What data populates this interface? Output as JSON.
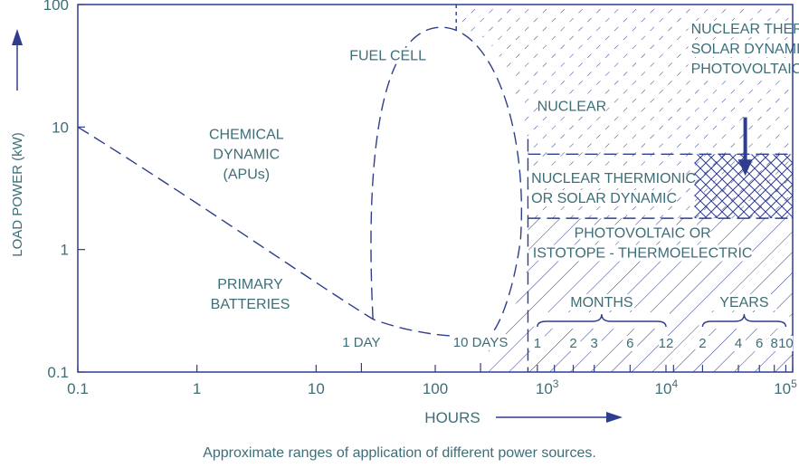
{
  "colors": {
    "axis": "#2f3d8f",
    "text": "#3d6e78",
    "line": "#2f3d8f",
    "arrow": "#2f3d8f"
  },
  "caption": "Approximate ranges of application of different power sources.",
  "chart_data": {
    "type": "area",
    "xlabel": "HOURS",
    "ylabel": "LOAD POWER (kW)",
    "x_scale": "log",
    "y_scale": "log",
    "xlim": [
      0.1,
      100000
    ],
    "ylim": [
      0.1,
      100
    ],
    "x_ticks": [
      {
        "value": 0.1,
        "label": "0.1"
      },
      {
        "value": 1,
        "label": "1"
      },
      {
        "value": 10,
        "label": "10"
      },
      {
        "value": 100,
        "label": "100"
      },
      {
        "value": 1000,
        "label": "10",
        "exp": "3"
      },
      {
        "value": 10000,
        "label": "10",
        "exp": "4"
      },
      {
        "value": 100000,
        "label": "10",
        "exp": "5"
      }
    ],
    "y_ticks": [
      {
        "value": 0.1,
        "label": "0.1"
      },
      {
        "value": 1,
        "label": "1"
      },
      {
        "value": 10,
        "label": "10"
      },
      {
        "value": 100,
        "label": "100"
      }
    ],
    "time_markers": [
      {
        "x": 24,
        "label": "1 DAY"
      },
      {
        "x": 240,
        "label": "10 DAYS"
      }
    ],
    "months": {
      "label": "MONTHS",
      "ticks": [
        {
          "x": 720,
          "label": "1"
        },
        {
          "x": 1440,
          "label": "2"
        },
        {
          "x": 2160,
          "label": "3"
        },
        {
          "x": 4320,
          "label": "6"
        },
        {
          "x": 8640,
          "label": "12"
        }
      ]
    },
    "years": {
      "label": "YEARS",
      "ticks": [
        {
          "x": 17520,
          "label": "2"
        },
        {
          "x": 35040,
          "label": "4"
        },
        {
          "x": 52560,
          "label": "6"
        },
        {
          "x": 70080,
          "label": "8"
        },
        {
          "x": 87600,
          "label": "10"
        }
      ]
    },
    "regions": [
      {
        "name": "chemical_dynamic",
        "label": [
          "CHEMICAL",
          "DYNAMIC",
          "(APUs)"
        ]
      },
      {
        "name": "fuel_cell",
        "label": [
          "FUEL CELL"
        ]
      },
      {
        "name": "primary_batteries",
        "label": [
          "PRIMARY",
          "BATTERIES"
        ]
      },
      {
        "name": "nuclear",
        "label": [
          "NUCLEAR"
        ]
      },
      {
        "name": "nuclear_thermionics_solar_pv",
        "label": [
          "NUCLEAR THERMIONICS",
          "SOLAR DYNAMIC AND",
          "PHOTOVOLTAIC"
        ]
      },
      {
        "name": "nuclear_thermionic_or_solar_dynamic",
        "label": [
          "NUCLEAR THERMIONIC",
          "OR SOLAR DYNAMIC"
        ]
      },
      {
        "name": "photovoltaic_or_isotope_thermoelectric",
        "label": [
          "PHOTOVOLTAIC OR",
          "ISTOTOPE - THERMOELECTRIC"
        ]
      }
    ],
    "boundaries": {
      "batteries": [
        [
          0.1,
          10
        ],
        [
          1,
          3
        ],
        [
          10,
          0.6
        ],
        [
          30,
          0.27
        ],
        [
          150,
          0.2
        ],
        [
          280,
          0.2
        ]
      ],
      "fuel_cell": [
        [
          30,
          0.27
        ],
        [
          45,
          15
        ],
        [
          120,
          65
        ],
        [
          190,
          55
        ],
        [
          440,
          8
        ],
        [
          700,
          0.8
        ],
        [
          500,
          0.3
        ],
        [
          280,
          0.2
        ]
      ],
      "nuclear_lower_kw": 6,
      "solar_lower_kw": 1.8,
      "boundary_hours": 600
    },
    "arrow": {
      "x": 40000,
      "y_from": 12,
      "y_to": 4
    }
  }
}
